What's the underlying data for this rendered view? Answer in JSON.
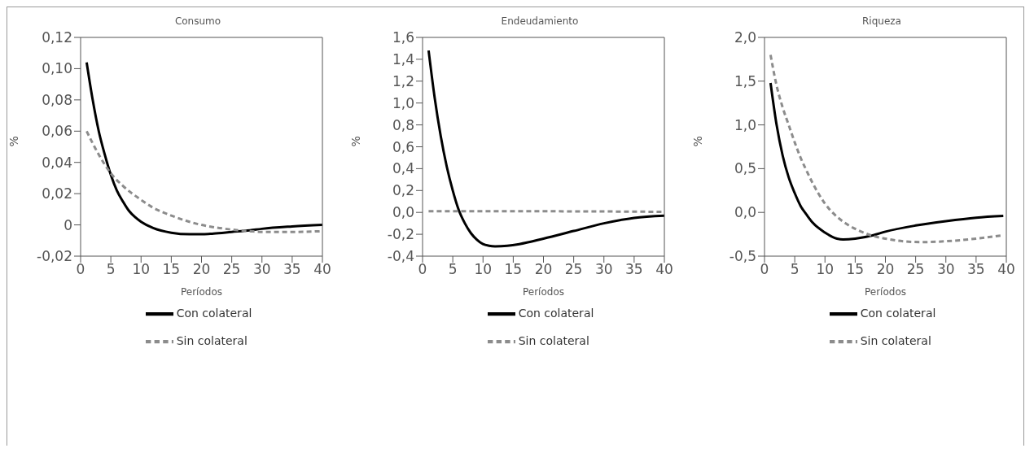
{
  "chart_data": [
    {
      "type": "line",
      "title": "Consumo",
      "xlabel": "Períodos",
      "ylabel": "%",
      "legend": "bottom",
      "xlim": [
        0,
        40
      ],
      "xticks": [
        0,
        5,
        10,
        15,
        20,
        25,
        30,
        35,
        40
      ],
      "ylim": [
        -0.02,
        0.12
      ],
      "yticks": [
        {
          "value": -0.02,
          "label": "-0,02"
        },
        0,
        {
          "value": 0.02,
          "label": "0,02"
        },
        {
          "value": 0.04,
          "label": "0,04"
        },
        {
          "value": 0.06,
          "label": "0,06"
        },
        {
          "value": 0.08,
          "label": "0,08"
        },
        {
          "value": 0.1,
          "label": "0,10"
        },
        {
          "value": 0.12,
          "label": "0,12"
        }
      ],
      "series": [
        {
          "name": "Con colateral",
          "color": "#000000",
          "line_style": "solid",
          "x": [
            1,
            2,
            3,
            4,
            5,
            6,
            7,
            8,
            9,
            10,
            12,
            15,
            18,
            20,
            22,
            25,
            28,
            30,
            35,
            40
          ],
          "values": [
            0.104,
            0.08,
            0.06,
            0.045,
            0.032,
            0.022,
            0.015,
            0.009,
            0.005,
            0.002,
            -0.002,
            -0.005,
            -0.006,
            -0.006,
            -0.0055,
            -0.0045,
            -0.0035,
            -0.0025,
            -0.001,
            0
          ]
        },
        {
          "name": "Sin colateral",
          "color": "#8c8c8c",
          "line_style": "dashed",
          "x": [
            1,
            3,
            5,
            7,
            10,
            12,
            15,
            18,
            20,
            23,
            25,
            28,
            30,
            35,
            40
          ],
          "values": [
            0.06,
            0.045,
            0.033,
            0.025,
            0.016,
            0.011,
            0.006,
            0.002,
            0,
            -0.002,
            -0.003,
            -0.004,
            -0.0045,
            -0.0045,
            -0.004
          ]
        }
      ]
    },
    {
      "type": "line",
      "title": "Endeudamiento",
      "xlabel": "Períodos",
      "ylabel": "%",
      "legend": "bottom",
      "xlim": [
        0,
        40
      ],
      "xticks": [
        0,
        5,
        10,
        15,
        20,
        25,
        30,
        35,
        40
      ],
      "ylim": [
        -0.4,
        1.6
      ],
      "yticks": [
        {
          "value": -0.4,
          "label": "-0,4"
        },
        {
          "value": -0.2,
          "label": "-0,2"
        },
        {
          "value": 0,
          "label": "0,0"
        },
        {
          "value": 0.2,
          "label": "0,2"
        },
        {
          "value": 0.4,
          "label": "0,4"
        },
        {
          "value": 0.6,
          "label": "0,6"
        },
        {
          "value": 0.8,
          "label": "0,8"
        },
        {
          "value": 1,
          "label": "1,0"
        },
        {
          "value": 1.2,
          "label": "1,2"
        },
        {
          "value": 1.4,
          "label": "1,4"
        },
        {
          "value": 1.6,
          "label": "1,6"
        }
      ],
      "series": [
        {
          "name": "Con colateral",
          "color": "#000000",
          "line_style": "solid",
          "x": [
            1,
            2,
            3,
            4,
            5,
            6,
            7,
            8,
            9,
            10,
            11,
            12,
            14,
            16,
            20,
            25,
            30,
            35,
            40
          ],
          "values": [
            1.48,
            1.05,
            0.7,
            0.42,
            0.2,
            0.02,
            -0.1,
            -0.19,
            -0.25,
            -0.29,
            -0.305,
            -0.31,
            -0.305,
            -0.29,
            -0.24,
            -0.17,
            -0.1,
            -0.05,
            -0.03
          ]
        },
        {
          "name": "Sin colateral",
          "color": "#8c8c8c",
          "line_style": "dashed",
          "x": [
            1,
            20,
            40
          ],
          "values": [
            0.01,
            0.01,
            0.005
          ]
        }
      ]
    },
    {
      "type": "line",
      "title": "Riqueza",
      "xlabel": "Períodos",
      "ylabel": "%",
      "legend": "bottom",
      "xlim": [
        0,
        40
      ],
      "xticks": [
        0,
        5,
        10,
        15,
        20,
        25,
        30,
        35,
        40
      ],
      "ylim": [
        -0.5,
        2
      ],
      "yticks": [
        {
          "value": -0.5,
          "label": "-0,5"
        },
        {
          "value": 0,
          "label": "0,0"
        },
        {
          "value": 0.5,
          "label": "0,5"
        },
        {
          "value": 1,
          "label": "1,0"
        },
        {
          "value": 1.5,
          "label": "1,5"
        },
        {
          "value": 2,
          "label": "2,0"
        }
      ],
      "series": [
        {
          "name": "Con colateral",
          "color": "#000000",
          "line_style": "solid",
          "x": [
            1,
            2,
            3,
            4,
            5,
            6,
            7,
            8,
            10,
            12,
            13,
            15,
            18,
            20,
            25,
            30,
            35,
            39.5
          ],
          "values": [
            1.48,
            1.0,
            0.65,
            0.4,
            0.22,
            0.07,
            -0.03,
            -0.12,
            -0.23,
            -0.3,
            -0.31,
            -0.3,
            -0.26,
            -0.22,
            -0.15,
            -0.1,
            -0.06,
            -0.04
          ]
        },
        {
          "name": "Sin colateral",
          "color": "#8c8c8c",
          "line_style": "dashed",
          "x": [
            1,
            2,
            3,
            4,
            5,
            6,
            7,
            8,
            10,
            12,
            14,
            16,
            18,
            20,
            23,
            26,
            30,
            35,
            39.5
          ],
          "values": [
            1.8,
            1.45,
            1.2,
            1.0,
            0.8,
            0.62,
            0.47,
            0.33,
            0.1,
            -0.05,
            -0.15,
            -0.22,
            -0.27,
            -0.3,
            -0.33,
            -0.34,
            -0.33,
            -0.3,
            -0.26
          ]
        }
      ]
    }
  ]
}
